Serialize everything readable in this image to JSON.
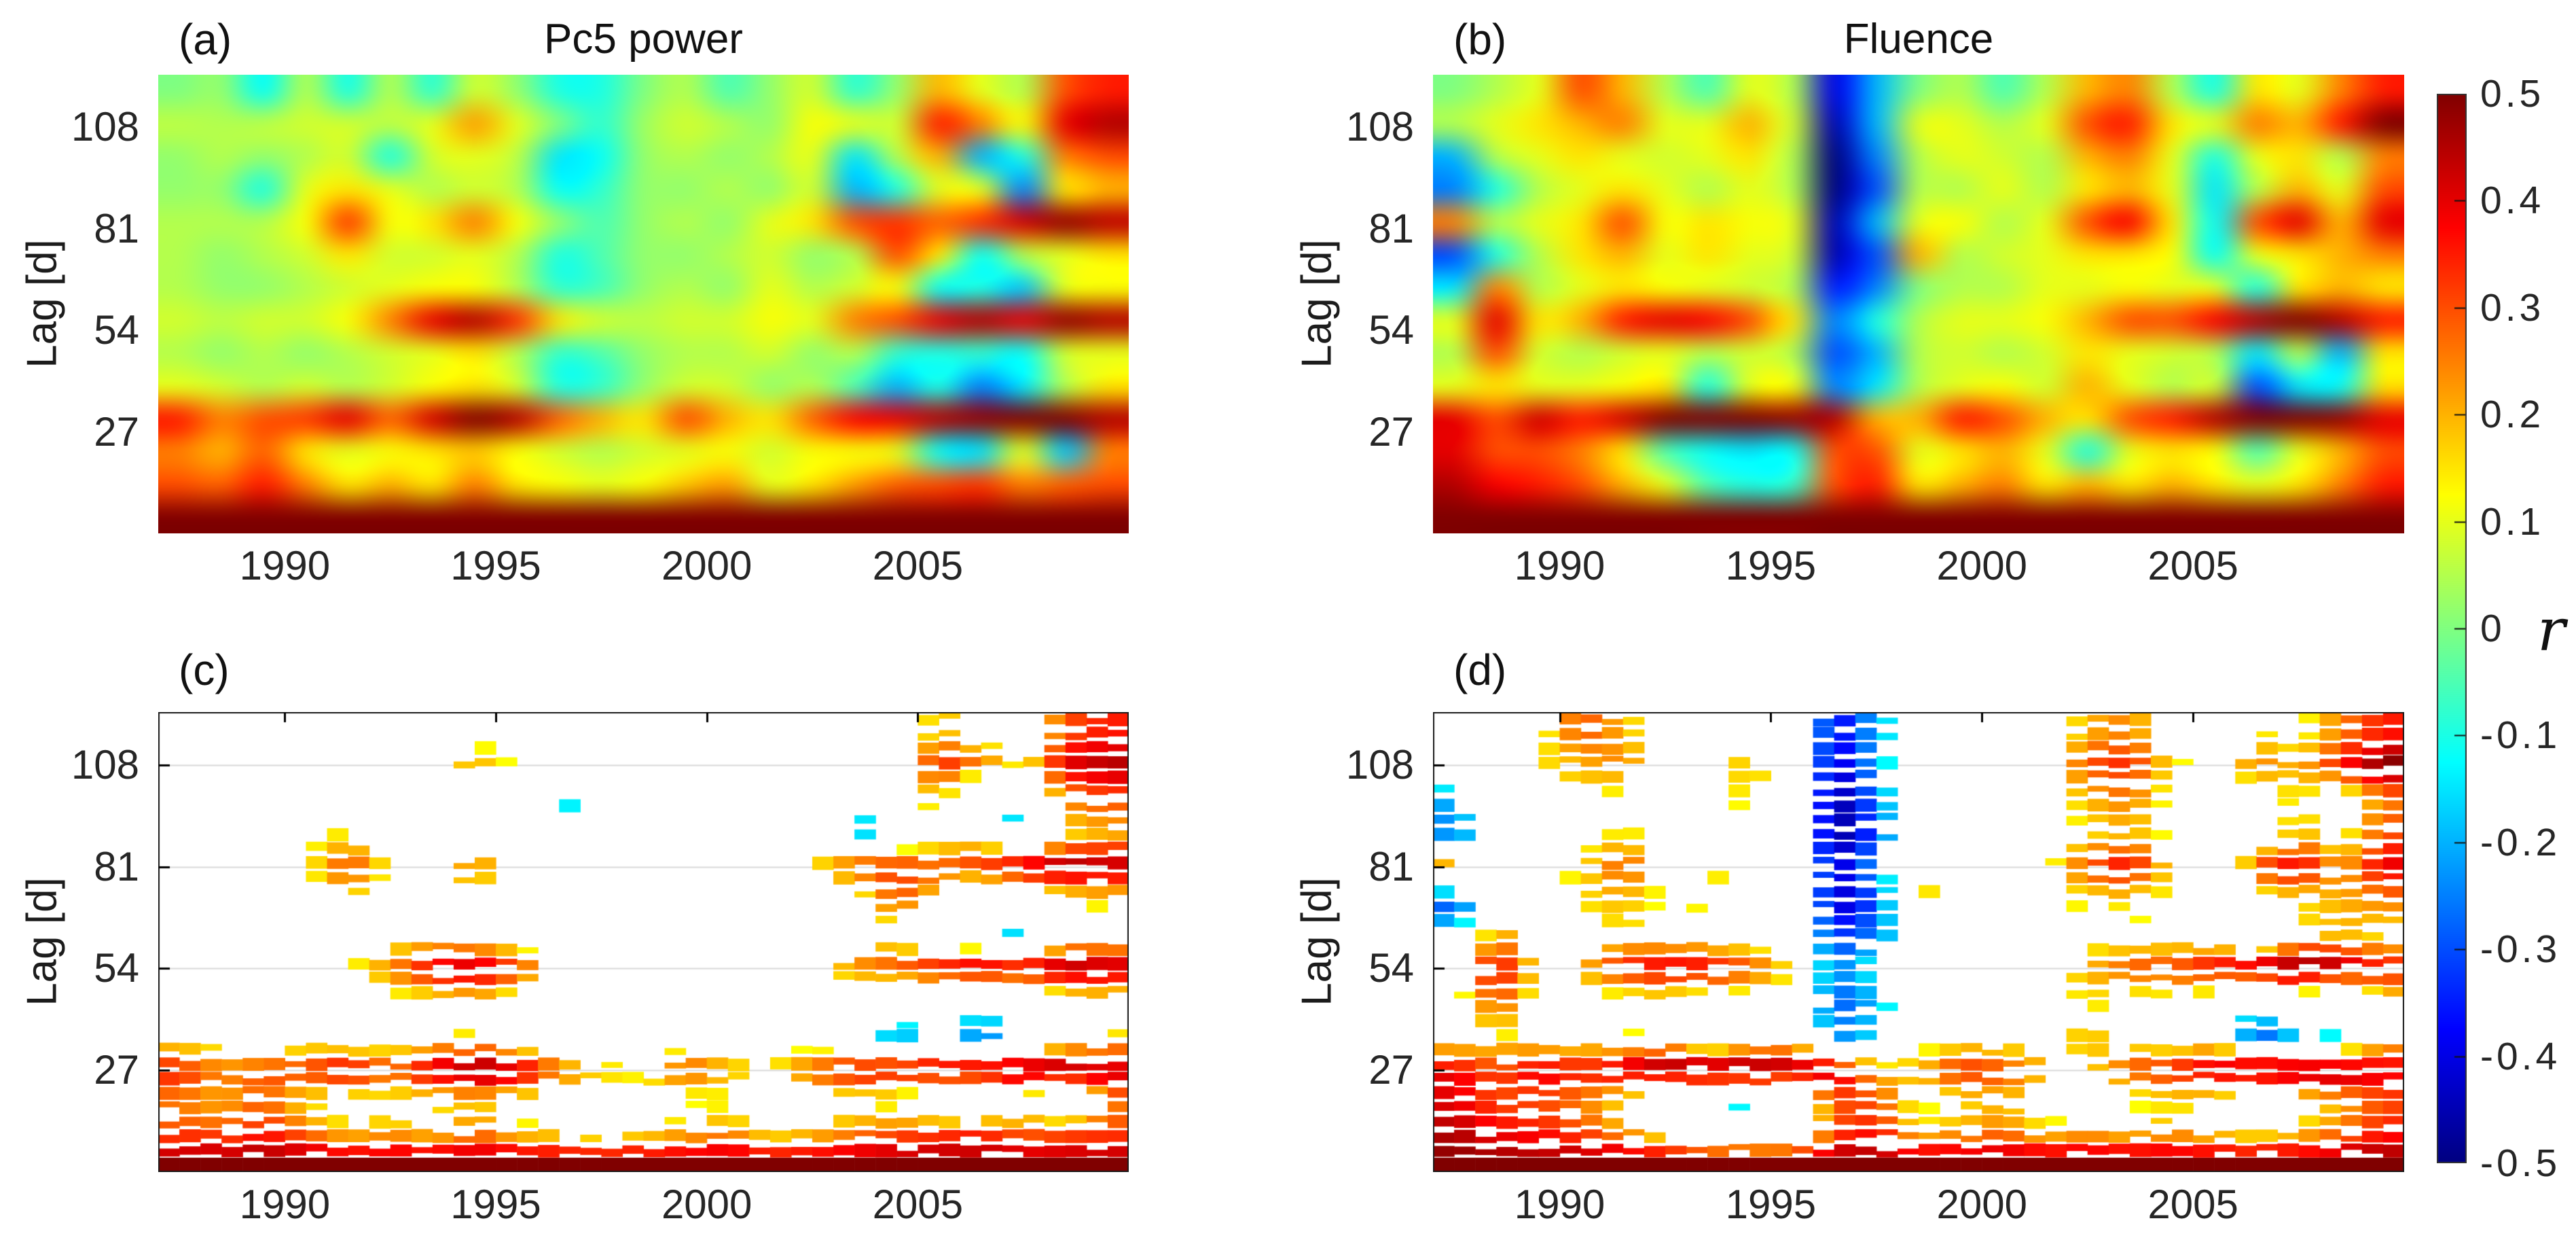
{
  "chart_data": {
    "type": "heatmap",
    "description": "Cross-correlation coefficient r versus time and lag; top row full fields, bottom row statistically significant values only",
    "x_range": [
      1987,
      2010
    ],
    "y_range": [
      0,
      122
    ],
    "x": [
      1987.5,
      1988.5,
      1989.5,
      1990.5,
      1991.5,
      1992.5,
      1993.5,
      1994.5,
      1995.5,
      1996.5,
      1997.5,
      1998.5,
      1999.5,
      2000.5,
      2001.5,
      2002.5,
      2003.5,
      2004.5,
      2005.5,
      2006.5,
      2007.5,
      2008.5,
      2009.5
    ],
    "y": [
      2,
      11,
      19,
      27,
      36,
      45,
      54,
      63,
      72,
      81,
      90,
      99,
      108,
      117
    ],
    "xticks": [
      "1990",
      "1995",
      "2000",
      "2005"
    ],
    "xtick_values": [
      1990,
      1995,
      2000,
      2005
    ],
    "yticks": [
      "27",
      "54",
      "81",
      "108"
    ],
    "ytick_values": [
      27,
      54,
      81,
      108
    ],
    "ylabel": "Lag [d]",
    "grid_on": true,
    "legend_position": "right-colorbar",
    "panels": [
      {
        "id": "a",
        "label": "(a)",
        "title": "Pc5 power",
        "style": "smooth",
        "values": [
          [
            0.5,
            0.5,
            0.5,
            0.5,
            0.5,
            0.5,
            0.5,
            0.5,
            0.5,
            0.5,
            0.5,
            0.5,
            0.5,
            0.5,
            0.5,
            0.5,
            0.5,
            0.5,
            0.5,
            0.5,
            0.5,
            0.5,
            0.5
          ],
          [
            0.3,
            0.28,
            0.35,
            0.25,
            0.15,
            0.2,
            0.15,
            0.25,
            0.15,
            0.12,
            0.1,
            0.12,
            0.18,
            0.22,
            0.1,
            0.15,
            0.22,
            0.28,
            0.3,
            0.32,
            0.25,
            0.28,
            0.3
          ],
          [
            0.25,
            0.2,
            0.28,
            0.15,
            0.1,
            0.12,
            0.15,
            0.18,
            0.12,
            0.08,
            0.05,
            0.08,
            0.1,
            0.12,
            0.08,
            0.12,
            0.12,
            0.1,
            -0.12,
            -0.15,
            0.1,
            -0.18,
            0.25
          ],
          [
            0.35,
            0.25,
            0.3,
            0.32,
            0.4,
            0.28,
            0.42,
            0.5,
            0.45,
            0.28,
            0.2,
            0.15,
            0.3,
            0.2,
            0.15,
            0.28,
            0.38,
            0.4,
            0.45,
            0.48,
            0.5,
            0.5,
            0.45
          ],
          [
            0.1,
            0.08,
            0.05,
            0.08,
            0.05,
            0.08,
            0.12,
            0.15,
            0.08,
            -0.1,
            -0.08,
            0.02,
            0.08,
            0.08,
            0.02,
            0.05,
            -0.05,
            -0.2,
            -0.1,
            -0.25,
            -0.15,
            0.05,
            0.15
          ],
          [
            0.05,
            0.02,
            0.05,
            0.02,
            0.05,
            0.08,
            0.1,
            0.15,
            0.05,
            -0.08,
            -0.05,
            0.02,
            0.05,
            0.05,
            0.08,
            0.02,
            0.05,
            -0.08,
            -0.1,
            -0.08,
            -0.12,
            0.08,
            0.1
          ],
          [
            0.08,
            0.06,
            0.08,
            0.08,
            0.12,
            0.25,
            0.4,
            0.45,
            0.33,
            0.15,
            0.08,
            0.06,
            0.08,
            0.08,
            0.12,
            0.1,
            0.25,
            0.3,
            0.4,
            0.45,
            0.4,
            0.48,
            0.45
          ],
          [
            0.05,
            0.02,
            0.02,
            0.05,
            0.08,
            0.1,
            0.12,
            0.12,
            0.05,
            -0.08,
            -0.06,
            0.02,
            0.05,
            0.02,
            0.1,
            0.05,
            0.08,
            0.12,
            -0.12,
            -0.1,
            -0.18,
            0.1,
            0.12
          ],
          [
            0.05,
            0.02,
            0.05,
            0.08,
            0.15,
            0.08,
            0.08,
            0.1,
            0.05,
            -0.1,
            -0.05,
            0.02,
            0.02,
            0.05,
            0.08,
            0.02,
            0.05,
            0.3,
            0.15,
            -0.12,
            0.05,
            0.1,
            0.15
          ],
          [
            0.05,
            0.05,
            0.05,
            0.12,
            0.32,
            0.12,
            0.15,
            0.25,
            0.12,
            0.02,
            -0.05,
            0.02,
            0.05,
            0.02,
            0.1,
            0.15,
            0.3,
            0.33,
            0.28,
            0.33,
            0.42,
            0.48,
            0.44
          ],
          [
            0.02,
            0.02,
            -0.1,
            0.1,
            0.15,
            0.1,
            0.05,
            0.08,
            0.05,
            -0.12,
            -0.08,
            0.02,
            0.02,
            0.05,
            0.02,
            0.08,
            -0.2,
            -0.1,
            0.1,
            0.1,
            -0.25,
            0.15,
            0.2
          ],
          [
            0.02,
            0.05,
            0.02,
            0.05,
            0.08,
            -0.1,
            0.08,
            0.1,
            0.06,
            -0.15,
            -0.12,
            0.02,
            0.05,
            0.02,
            0.05,
            0.1,
            -0.15,
            0.05,
            0.2,
            -0.2,
            -0.1,
            0.25,
            0.3
          ],
          [
            0.06,
            0.05,
            0.06,
            0.08,
            0.08,
            0.06,
            0.1,
            0.22,
            0.1,
            0.0,
            -0.08,
            0.03,
            0.08,
            0.05,
            0.02,
            0.12,
            0.1,
            0.08,
            0.35,
            0.25,
            0.12,
            0.4,
            0.45
          ],
          [
            0.0,
            0.02,
            -0.12,
            0.05,
            -0.1,
            0.05,
            -0.08,
            0.08,
            0.02,
            -0.1,
            -0.1,
            0.0,
            0.05,
            -0.05,
            0.02,
            0.08,
            -0.08,
            0.02,
            0.2,
            0.1,
            0.05,
            0.3,
            0.35
          ]
        ]
      },
      {
        "id": "b",
        "label": "(b)",
        "title": "Fluence",
        "style": "smooth",
        "values": [
          [
            0.5,
            0.5,
            0.5,
            0.5,
            0.5,
            0.5,
            0.5,
            0.5,
            0.5,
            0.5,
            0.5,
            0.5,
            0.5,
            0.5,
            0.5,
            0.5,
            0.5,
            0.5,
            0.5,
            0.5,
            0.5,
            0.5,
            0.5
          ],
          [
            0.45,
            0.38,
            0.35,
            0.3,
            0.2,
            0.1,
            -0.05,
            -0.1,
            -0.08,
            0.3,
            0.35,
            0.15,
            0.2,
            0.25,
            0.15,
            0.2,
            0.15,
            0.2,
            0.15,
            0.1,
            0.15,
            0.25,
            0.35
          ],
          [
            0.4,
            0.3,
            0.3,
            0.25,
            0.15,
            -0.05,
            -0.12,
            -0.15,
            -0.12,
            0.3,
            0.3,
            0.1,
            0.15,
            0.2,
            0.1,
            -0.1,
            0.1,
            0.15,
            0.12,
            -0.05,
            0.1,
            0.2,
            0.3
          ],
          [
            0.4,
            0.3,
            0.42,
            0.35,
            0.42,
            0.5,
            0.5,
            0.5,
            0.48,
            0.45,
            0.2,
            0.2,
            0.35,
            0.3,
            0.2,
            0.15,
            0.3,
            0.35,
            0.45,
            0.5,
            0.5,
            0.48,
            0.4
          ],
          [
            0.1,
            0.15,
            0.1,
            0.1,
            0.12,
            0.15,
            -0.1,
            0.1,
            0.12,
            -0.25,
            -0.15,
            0.05,
            0.1,
            0.12,
            0.08,
            0.2,
            0.1,
            0.05,
            0.08,
            -0.3,
            -0.15,
            -0.12,
            0.15
          ],
          [
            0.05,
            0.3,
            0.08,
            0.05,
            0.08,
            0.1,
            0.05,
            0.08,
            0.05,
            -0.3,
            -0.2,
            0.05,
            0.08,
            0.05,
            0.08,
            0.15,
            0.1,
            0.08,
            0.05,
            -0.15,
            0.05,
            -0.2,
            0.15
          ],
          [
            0.1,
            0.4,
            0.15,
            0.2,
            0.35,
            0.4,
            0.38,
            0.3,
            0.15,
            -0.25,
            -0.1,
            0.05,
            0.1,
            0.1,
            0.12,
            0.2,
            0.3,
            0.3,
            0.38,
            0.45,
            0.5,
            0.45,
            0.35
          ],
          [
            -0.15,
            0.25,
            0.05,
            0.1,
            0.15,
            0.12,
            0.1,
            0.08,
            0.05,
            -0.35,
            -0.25,
            0.0,
            0.05,
            0.05,
            0.1,
            0.1,
            0.12,
            0.1,
            0.1,
            -0.1,
            0.15,
            0.2,
            0.15
          ],
          [
            -0.3,
            -0.1,
            0.05,
            0.15,
            0.2,
            0.1,
            0.15,
            0.1,
            0.08,
            -0.45,
            -0.3,
            0.2,
            0.05,
            0.08,
            0.1,
            0.15,
            0.15,
            0.12,
            -0.12,
            0.1,
            0.15,
            0.2,
            0.25
          ],
          [
            0.25,
            0.05,
            0.1,
            0.15,
            0.3,
            0.12,
            0.15,
            0.12,
            0.1,
            -0.45,
            -0.2,
            0.1,
            0.12,
            0.05,
            0.1,
            0.3,
            0.38,
            0.15,
            -0.12,
            0.3,
            0.4,
            0.2,
            0.4
          ],
          [
            -0.25,
            -0.1,
            0.05,
            0.1,
            0.15,
            0.1,
            0.05,
            0.1,
            0.05,
            -0.5,
            -0.3,
            0.05,
            0.05,
            0.1,
            0.05,
            0.15,
            0.2,
            0.1,
            -0.15,
            0.05,
            0.2,
            0.1,
            0.3
          ],
          [
            -0.2,
            0.05,
            0.1,
            0.15,
            0.1,
            0.08,
            0.1,
            0.15,
            0.05,
            -0.5,
            -0.25,
            0.05,
            0.1,
            0.08,
            0.05,
            0.2,
            0.25,
            0.1,
            -0.1,
            0.1,
            0.15,
            0.05,
            0.25
          ],
          [
            0.05,
            0.1,
            0.15,
            0.2,
            0.25,
            0.1,
            0.1,
            0.2,
            0.08,
            -0.45,
            -0.2,
            0.1,
            0.1,
            0.05,
            0.1,
            0.3,
            0.35,
            0.15,
            0.1,
            0.25,
            0.2,
            0.35,
            0.5
          ],
          [
            0.0,
            0.05,
            0.1,
            0.3,
            0.2,
            0.05,
            -0.05,
            0.1,
            0.05,
            -0.4,
            -0.2,
            0.0,
            0.05,
            -0.05,
            0.05,
            0.2,
            0.25,
            0.05,
            -0.1,
            0.15,
            0.1,
            0.25,
            0.35
          ]
        ]
      },
      {
        "id": "c",
        "label": "(c)",
        "title": "",
        "style": "significant",
        "derived_from": "a",
        "note": "same data as panel a, only statistically significant cells drawn on white"
      },
      {
        "id": "d",
        "label": "(d)",
        "title": "",
        "style": "significant",
        "derived_from": "b",
        "note": "same data as panel b, only statistically significant cells drawn on white"
      }
    ],
    "colorbar": {
      "label": "r",
      "min": -0.5,
      "max": 0.5,
      "ticks": [
        "0.5",
        "0.4",
        "0.3",
        "0.2",
        "0.1",
        "0",
        "-0.1",
        "-0.2",
        "-0.3",
        "-0.4",
        "-0.5"
      ],
      "tick_values": [
        0.5,
        0.4,
        0.3,
        0.2,
        0.1,
        0,
        -0.1,
        -0.2,
        -0.3,
        -0.4,
        -0.5
      ]
    },
    "colormap_stops": [
      [
        -0.5,
        "#000080"
      ],
      [
        -0.375,
        "#0000ff"
      ],
      [
        -0.125,
        "#00ffff"
      ],
      [
        0.0,
        "#80ff80"
      ],
      [
        0.125,
        "#ffff00"
      ],
      [
        0.375,
        "#ff0000"
      ],
      [
        0.5,
        "#800000"
      ]
    ],
    "significance_threshold": 0.15,
    "gridline_color": "#d9d9d9",
    "text_color": "#1c1c1c"
  }
}
